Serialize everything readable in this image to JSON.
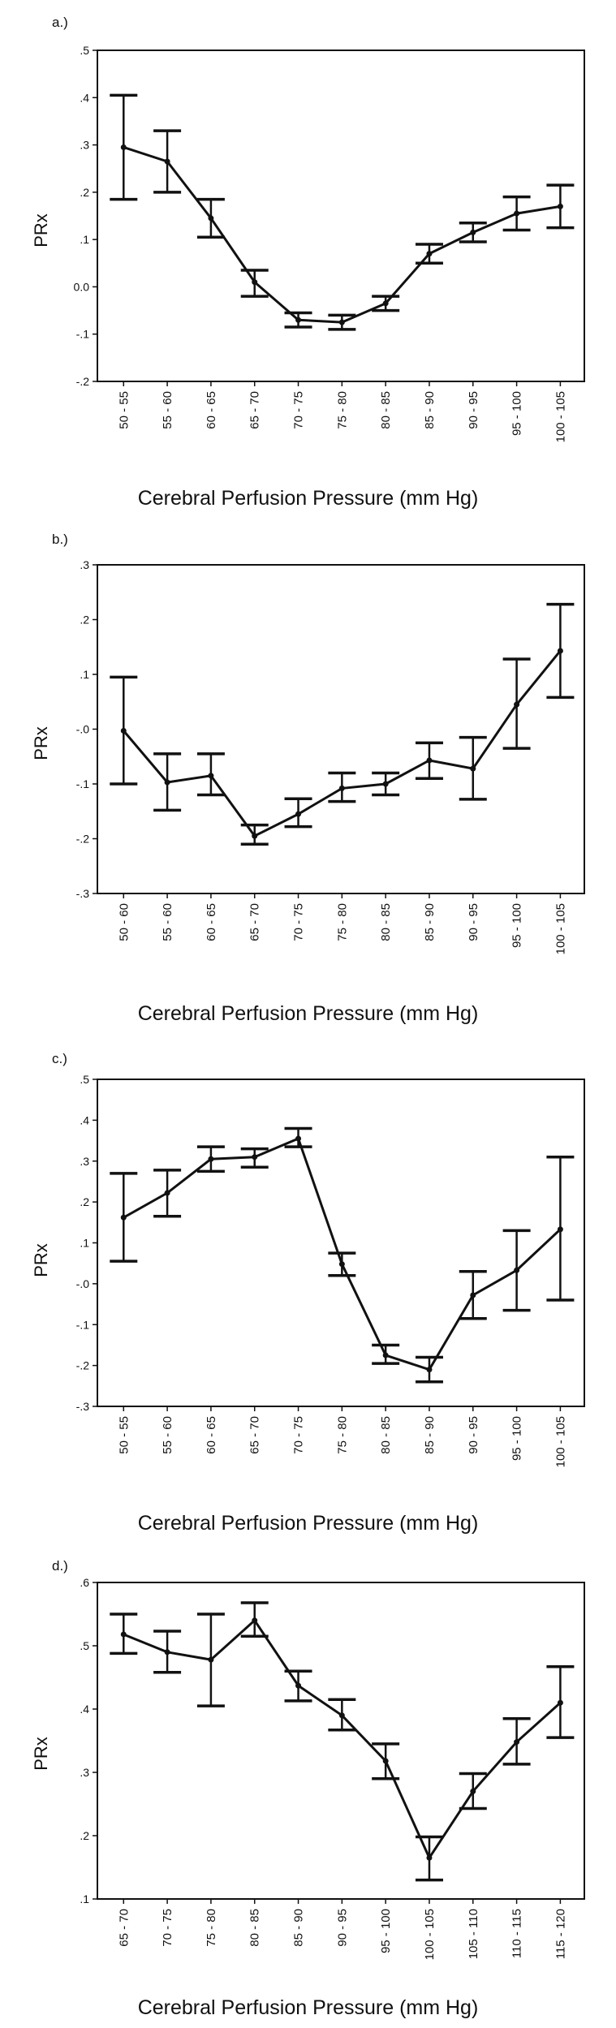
{
  "chart_data": [
    {
      "type": "line",
      "panel_label": "a.)",
      "xlabel": "Cerebral Perfusion Pressure (mm Hg)",
      "ylabel": "PRx",
      "categories": [
        "50 - 55",
        "55 - 60",
        "60 - 65",
        "65 - 70",
        "70 - 75",
        "75 - 80",
        "80 - 85",
        "85 - 90",
        "90 - 95",
        "95 - 100",
        "100 - 105"
      ],
      "ylim": [
        -0.2,
        0.5
      ],
      "yticks": [
        -0.2,
        -0.1,
        0.0,
        0.1,
        0.2,
        0.3,
        0.4,
        0.5
      ],
      "ytick_labels": [
        "-.2",
        "-.1",
        "0.0",
        ".1",
        ".2",
        ".3",
        ".4",
        ".5"
      ],
      "series": [
        {
          "values": [
            0.295,
            0.265,
            0.145,
            0.01,
            -0.07,
            -0.075,
            -0.035,
            0.07,
            0.115,
            0.155,
            0.17
          ],
          "error_low": [
            0.185,
            0.2,
            0.105,
            -0.02,
            -0.085,
            -0.09,
            -0.05,
            0.05,
            0.095,
            0.12,
            0.125
          ],
          "error_high": [
            0.405,
            0.33,
            0.185,
            0.035,
            -0.055,
            -0.06,
            -0.02,
            0.09,
            0.135,
            0.19,
            0.215
          ]
        }
      ]
    },
    {
      "type": "line",
      "panel_label": "b.)",
      "xlabel": "Cerebral Perfusion Pressure (mm Hg)",
      "ylabel": "PRx",
      "categories": [
        "50 - 60",
        "55 - 60",
        "60 - 65",
        "65 - 70",
        "70 - 75",
        "75 - 80",
        "80 - 85",
        "85 - 90",
        "90 - 95",
        "95 - 100",
        "100 - 105"
      ],
      "ylim": [
        -0.3,
        0.3
      ],
      "yticks": [
        -0.3,
        -0.2,
        -0.1,
        0.0,
        0.1,
        0.2,
        0.3
      ],
      "ytick_labels": [
        "-.3",
        "-.2",
        "-.1",
        "-.0",
        ".1",
        ".2",
        ".3"
      ],
      "series": [
        {
          "values": [
            -0.003,
            -0.097,
            -0.085,
            -0.195,
            -0.155,
            -0.108,
            -0.1,
            -0.057,
            -0.072,
            0.045,
            0.143
          ],
          "error_low": [
            -0.1,
            -0.148,
            -0.12,
            -0.21,
            -0.178,
            -0.132,
            -0.12,
            -0.09,
            -0.128,
            -0.035,
            0.058
          ],
          "error_high": [
            0.095,
            -0.045,
            -0.045,
            -0.175,
            -0.127,
            -0.08,
            -0.08,
            -0.025,
            -0.015,
            0.128,
            0.228
          ]
        }
      ]
    },
    {
      "type": "line",
      "panel_label": "c.)",
      "xlabel": "Cerebral Perfusion Pressure (mm Hg)",
      "ylabel": "PRx",
      "categories": [
        "50 - 55",
        "55 - 60",
        "60 - 65",
        "65 - 70",
        "70 - 75",
        "75 - 80",
        "80 - 85",
        "85 - 90",
        "90 - 95",
        "95 - 100",
        "100 - 105"
      ],
      "ylim": [
        -0.3,
        0.5
      ],
      "yticks": [
        -0.3,
        -0.2,
        -0.1,
        0.0,
        0.1,
        0.2,
        0.3,
        0.4,
        0.5
      ],
      "ytick_labels": [
        "-.3",
        "-.2",
        "-.1",
        "-.0",
        ".1",
        ".2",
        ".3",
        ".4",
        ".5"
      ],
      "series": [
        {
          "values": [
            0.162,
            0.222,
            0.305,
            0.31,
            0.355,
            0.048,
            -0.175,
            -0.21,
            -0.028,
            0.033,
            0.133
          ],
          "error_low": [
            0.055,
            0.165,
            0.275,
            0.285,
            0.335,
            0.02,
            -0.195,
            -0.24,
            -0.085,
            -0.065,
            -0.04
          ],
          "error_high": [
            0.27,
            0.278,
            0.335,
            0.33,
            0.38,
            0.075,
            -0.15,
            -0.18,
            0.03,
            0.13,
            0.31
          ]
        }
      ]
    },
    {
      "type": "line",
      "panel_label": "d.)",
      "xlabel": "Cerebral Perfusion Pressure (mm Hg)",
      "ylabel": "PRx",
      "categories": [
        "65 - 70",
        "70 - 75",
        "75 - 80",
        "80 - 85",
        "85 - 90",
        "90 - 95",
        "95 - 100",
        "100 - 105",
        "105 - 110",
        "110 - 115",
        "115 - 120"
      ],
      "ylim": [
        0.1,
        0.6
      ],
      "yticks": [
        0.1,
        0.2,
        0.3,
        0.4,
        0.5,
        0.6
      ],
      "ytick_labels": [
        ".1",
        ".2",
        ".3",
        ".4",
        ".5",
        ".6"
      ],
      "series": [
        {
          "values": [
            0.518,
            0.49,
            0.478,
            0.54,
            0.437,
            0.39,
            0.318,
            0.165,
            0.27,
            0.348,
            0.41
          ],
          "error_low": [
            0.488,
            0.458,
            0.405,
            0.515,
            0.413,
            0.367,
            0.29,
            0.13,
            0.243,
            0.313,
            0.355
          ],
          "error_high": [
            0.55,
            0.523,
            0.55,
            0.568,
            0.46,
            0.415,
            0.345,
            0.198,
            0.298,
            0.385,
            0.467
          ]
        }
      ]
    }
  ]
}
